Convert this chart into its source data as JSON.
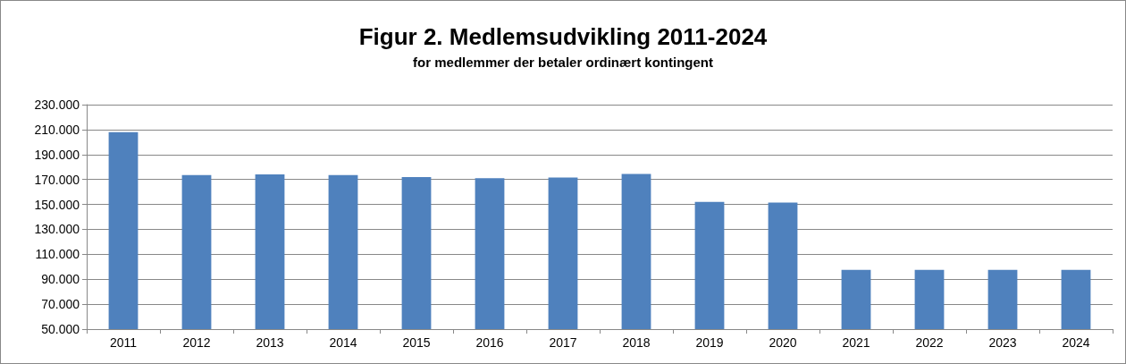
{
  "chart_data": {
    "type": "bar",
    "title": "Figur 2. Medlemsudvikling 2011-2024",
    "subtitle": "for medlemmer der betaler ordinært kontingent",
    "categories": [
      "2011",
      "2012",
      "2013",
      "2014",
      "2015",
      "2016",
      "2017",
      "2018",
      "2019",
      "2020",
      "2021",
      "2022",
      "2023",
      "2024"
    ],
    "values": [
      208000,
      173500,
      174000,
      173500,
      172000,
      171000,
      171500,
      174500,
      152000,
      151500,
      97500,
      97500,
      97500,
      97500
    ],
    "color": "#4f81bd",
    "ylim": [
      50000,
      230000
    ],
    "yticks": [
      {
        "value": 50000,
        "label": "50.000"
      },
      {
        "value": 70000,
        "label": "70.000"
      },
      {
        "value": 90000,
        "label": "90.000"
      },
      {
        "value": 110000,
        "label": "110.000"
      },
      {
        "value": 130000,
        "label": "130.000"
      },
      {
        "value": 150000,
        "label": "150.000"
      },
      {
        "value": 170000,
        "label": "170.000"
      },
      {
        "value": 190000,
        "label": "190.000"
      },
      {
        "value": 210000,
        "label": "210.000"
      },
      {
        "value": 230000,
        "label": "230.000"
      }
    ],
    "grid": "y"
  }
}
